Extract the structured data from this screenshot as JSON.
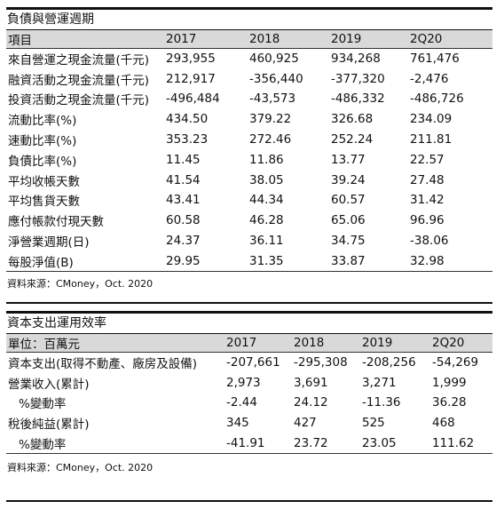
{
  "section1": {
    "title": "負債與營運週期",
    "headers": [
      "項目",
      "2017",
      "2018",
      "2019",
      "2Q20"
    ],
    "rows": [
      [
        "來自營運之現金流量(千元)",
        "293,955",
        "460,925",
        "934,268",
        "761,476"
      ],
      [
        "融資活動之現金流量(千元)",
        "212,917",
        "-356,440",
        "-377,320",
        "-2,476"
      ],
      [
        "投資活動之現金流量(千元)",
        "-496,484",
        "-43,573",
        "-486,332",
        "-486,726"
      ],
      [
        "流動比率(%)",
        "434.50",
        "379.22",
        "326.68",
        "234.09"
      ],
      [
        "速動比率(%)",
        "353.23",
        "272.46",
        "252.24",
        "211.81"
      ],
      [
        "負債比率(%)",
        "11.45",
        "11.86",
        "13.77",
        "22.57"
      ],
      [
        "平均收帳天數",
        "41.54",
        "38.05",
        "39.24",
        "27.48"
      ],
      [
        "平均售貨天數",
        "43.41",
        "44.34",
        "60.57",
        "31.42"
      ],
      [
        "應付帳款付現天數",
        "60.58",
        "46.28",
        "65.06",
        "96.96"
      ],
      [
        "淨營業週期(日)",
        "24.37",
        "36.11",
        "34.75",
        "-38.06"
      ],
      [
        "每股淨值(B)",
        "29.95",
        "31.35",
        "33.87",
        "32.98"
      ]
    ],
    "source": "資料來源：CMoney，Oct. 2020"
  },
  "section2": {
    "title": "資本支出運用效率",
    "headers": [
      "單位：百萬元",
      "2017",
      "2018",
      "2019",
      "2Q20"
    ],
    "rows": [
      [
        "資本支出(取得不動產、廠房及設備)",
        "-207,661",
        "-295,308",
        "-208,256",
        "-54,269"
      ],
      [
        "營業收入(累計)",
        "2,973",
        "3,691",
        "3,271",
        "1,999"
      ],
      [
        "%變動率",
        "-2.44",
        "24.12",
        "-11.36",
        "36.28"
      ],
      [
        "稅後純益(累計)",
        "345",
        "427",
        "525",
        "468"
      ],
      [
        "%變動率",
        "-41.91",
        "23.72",
        "23.05",
        "111.62"
      ]
    ],
    "source": "資料來源：CMoney，Oct. 2020"
  }
}
